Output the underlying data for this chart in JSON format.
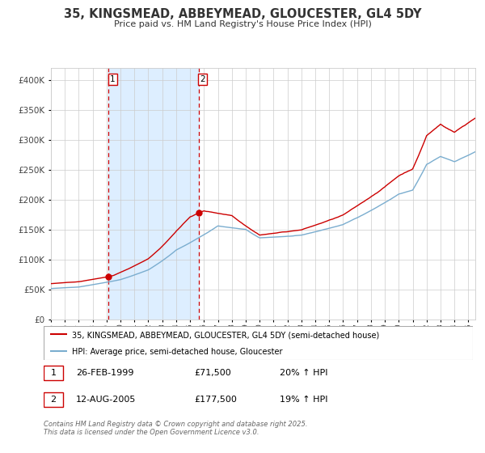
{
  "title": "35, KINGSMEAD, ABBEYMEAD, GLOUCESTER, GL4 5DY",
  "subtitle": "Price paid vs. HM Land Registry's House Price Index (HPI)",
  "legend_line1": "35, KINGSMEAD, ABBEYMEAD, GLOUCESTER, GL4 5DY (semi-detached house)",
  "legend_line2": "HPI: Average price, semi-detached house, Gloucester",
  "sale1_date": "26-FEB-1999",
  "sale1_price": "£71,500",
  "sale1_hpi": "20% ↑ HPI",
  "sale2_date": "12-AUG-2005",
  "sale2_price": "£177,500",
  "sale2_hpi": "19% ↑ HPI",
  "footer": "Contains HM Land Registry data © Crown copyright and database right 2025.\nThis data is licensed under the Open Government Licence v3.0.",
  "sale1_year": 1999.15,
  "sale2_year": 2005.62,
  "sale1_value": 71500,
  "sale2_value": 177500,
  "red_color": "#cc0000",
  "blue_color": "#7aadcf",
  "shade_color": "#ddeeff",
  "grid_color": "#cccccc",
  "bg_color": "#ffffff",
  "ylim_min": 0,
  "ylim_max": 420000,
  "title_color": "#333333",
  "xlabel_color": "#444444"
}
